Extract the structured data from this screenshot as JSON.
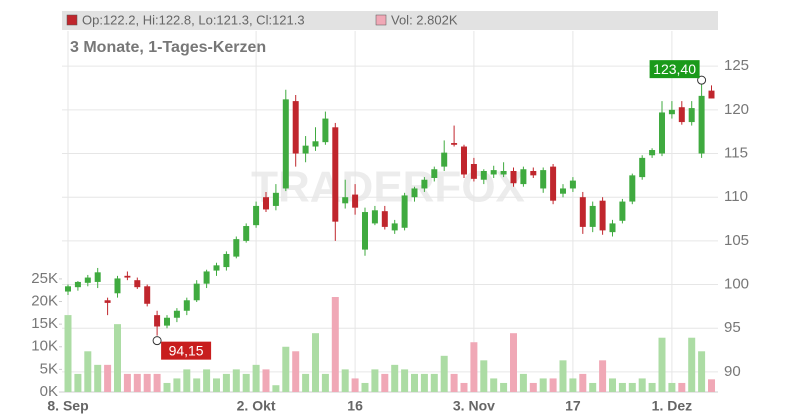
{
  "chart_data": {
    "type": "candlestick",
    "subtitle": "3 Monate, 1-Tages-Kerzen",
    "legend_ohlc": "Op:122.2, Hi:122.8, Lo:121.3, Cl:121.3",
    "legend_volume": "Vol: 2.802K",
    "watermark": "TRADERFOX",
    "categories": [
      "8. Sep",
      null,
      null,
      null,
      null,
      null,
      null,
      null,
      null,
      null,
      null,
      null,
      null,
      null,
      null,
      null,
      null,
      null,
      null,
      "2. Okt",
      null,
      null,
      null,
      null,
      null,
      null,
      null,
      null,
      null,
      "16",
      null,
      null,
      null,
      null,
      null,
      null,
      null,
      null,
      null,
      null,
      null,
      "3. Nov",
      null,
      null,
      null,
      null,
      null,
      null,
      null,
      null,
      null,
      "17",
      null,
      null,
      null,
      null,
      null,
      null,
      null,
      null,
      null,
      "1. Dez",
      null,
      null,
      null,
      null
    ],
    "open": [
      99.2,
      99.7,
      100.2,
      100.3,
      98.2,
      99,
      101,
      100.5,
      99.8,
      96.5,
      95.3,
      96.2,
      97,
      98.2,
      100.1,
      101.6,
      102,
      103.2,
      105,
      106.8,
      110,
      109,
      111,
      121,
      115,
      115.8,
      116.3,
      118,
      109.3,
      110.3,
      104,
      107,
      108.4,
      106.2,
      106.5,
      110,
      111,
      112.2,
      113.5,
      116.2,
      115.8,
      113.8,
      112,
      112.6,
      112.6,
      113,
      111.5,
      113,
      111,
      113.5,
      110.4,
      111,
      110,
      106.6,
      109.6,
      106,
      107.3,
      109.5,
      112.3,
      114.8,
      115,
      119.5,
      120.3,
      118.6,
      115,
      122.2
    ],
    "high": [
      100,
      100.4,
      101.1,
      101.9,
      98.5,
      101,
      101.5,
      100.8,
      100,
      97,
      96.5,
      97.3,
      98.5,
      100.5,
      101.7,
      102.5,
      103.8,
      105.5,
      107,
      109.5,
      110.6,
      111.5,
      122.3,
      121.7,
      117,
      118,
      119.8,
      118.5,
      112,
      111.5,
      108.8,
      109,
      109,
      107.4,
      110.5,
      111.2,
      112.3,
      113.5,
      116.5,
      118.2,
      116,
      114.5,
      113.2,
      113.6,
      114,
      113.4,
      113.5,
      113.4,
      113.4,
      113.8,
      111.5,
      112.3,
      110.6,
      109.5,
      110,
      107.4,
      109.8,
      112.7,
      114.8,
      115.6,
      121,
      121,
      121,
      121,
      123.4,
      122.8
    ],
    "low": [
      98.8,
      99.3,
      99.8,
      99.6,
      96.5,
      98.5,
      100.5,
      99.5,
      97.5,
      94.15,
      95,
      95.7,
      96.5,
      98,
      99.6,
      101,
      101.6,
      103,
      104.8,
      106.5,
      108.3,
      108.5,
      110.7,
      113.5,
      114,
      115.3,
      116,
      105,
      108.7,
      108,
      103.3,
      106.8,
      106.3,
      105.8,
      106.2,
      109.5,
      110.6,
      111.8,
      113,
      115.8,
      112.2,
      111.8,
      111.5,
      112.2,
      112.3,
      111.2,
      111.2,
      112.2,
      110.5,
      109.2,
      110,
      110.6,
      105.8,
      106,
      105.7,
      105.5,
      107,
      109.2,
      112,
      114.5,
      114.7,
      119,
      118.3,
      118.2,
      114.5,
      121.3
    ],
    "close": [
      99.8,
      100.3,
      100.8,
      101.4,
      97.9,
      100.7,
      100.8,
      99.7,
      97.8,
      95.2,
      96.2,
      97,
      98.2,
      100.1,
      101.5,
      102.2,
      103.5,
      105.2,
      106.7,
      109,
      108.6,
      110.5,
      121.2,
      115,
      115.9,
      116.4,
      119,
      107.2,
      110,
      108.8,
      108.3,
      108.5,
      106.6,
      107,
      110.2,
      111,
      112,
      113.2,
      115.1,
      116,
      112.6,
      112.1,
      113,
      113.1,
      113,
      111.6,
      113.2,
      112.5,
      113.1,
      109.6,
      111,
      111.9,
      106.6,
      109,
      106.2,
      107,
      109.5,
      112.5,
      114.5,
      115.4,
      119.7,
      120,
      118.6,
      120.2,
      121.6,
      121.3
    ],
    "volume": [
      17000,
      4000,
      9000,
      6000,
      6000,
      15000,
      4000,
      4000,
      4000,
      4000,
      2000,
      3000,
      5000,
      3000,
      5000,
      3000,
      4000,
      5000,
      4000,
      6000,
      5000,
      1500,
      10000,
      9000,
      4000,
      13000,
      4000,
      21000,
      5000,
      3000,
      2000,
      5000,
      4000,
      6000,
      5000,
      4000,
      4000,
      4000,
      8000,
      4000,
      2000,
      11000,
      7000,
      3000,
      2000,
      13000,
      4000,
      2000,
      3000,
      3000,
      7000,
      3000,
      4000,
      2000,
      7000,
      3000,
      2000,
      2000,
      3000,
      2000,
      12000,
      2000,
      2000,
      12000,
      9000,
      2802
    ],
    "ylim": [
      87.7,
      131.2
    ],
    "yticks": [
      90,
      95,
      100,
      105,
      110,
      115,
      120,
      125
    ],
    "volume_ylim": [
      0,
      84000
    ],
    "volume_ticks": [
      {
        "value": 0,
        "label": "0K"
      },
      {
        "value": 5000,
        "label": "5K"
      },
      {
        "value": 10000,
        "label": "10K"
      },
      {
        "value": 15000,
        "label": "15K"
      },
      {
        "value": 20000,
        "label": "20K"
      },
      {
        "value": 25000,
        "label": "25K"
      }
    ],
    "annotations": [
      {
        "value": 123.4,
        "label": "123,40",
        "color": "#1a9a1a"
      },
      {
        "value": 94.15,
        "label": "94,15",
        "color": "#c81e1e"
      }
    ],
    "up_color": "#3faa3f",
    "down_color": "#c0262d",
    "volume_up_color": "#acdca4",
    "volume_down_color": "#f0a8b6",
    "grid": true
  }
}
